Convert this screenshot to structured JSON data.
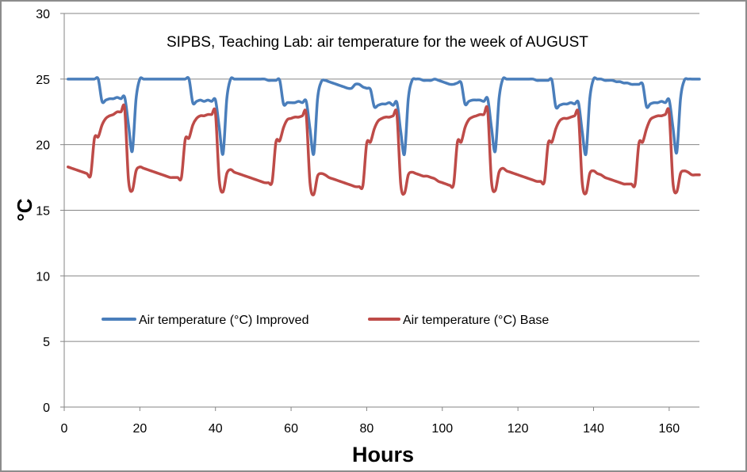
{
  "chart_data": {
    "type": "line",
    "title": "SIPBS, Teaching Lab: air temperature for the week of  AUGUST",
    "xlabel": "Hours",
    "ylabel": "°C",
    "xlim": [
      0,
      168
    ],
    "ylim": [
      0,
      30
    ],
    "xticks": [
      0,
      20,
      40,
      60,
      80,
      100,
      120,
      140,
      160
    ],
    "yticks": [
      0,
      5,
      10,
      15,
      20,
      25,
      30
    ],
    "grid": "horizontal",
    "legend_position": "center-left",
    "series": [
      {
        "name": "Air temperature (°C) Improved",
        "color": "#4a7ebb",
        "x_start": 1,
        "x_step": 1,
        "values": [
          25,
          25,
          25,
          25,
          25,
          25,
          25,
          25,
          25,
          23.3,
          23.4,
          23.5,
          23.5,
          23.6,
          23.5,
          23.6,
          21.5,
          19.5,
          23.5,
          25,
          25,
          25,
          25,
          25,
          25,
          25,
          25,
          25,
          25,
          25,
          25,
          25,
          25,
          23.2,
          23.3,
          23.4,
          23.3,
          23.4,
          23.3,
          23.4,
          21.3,
          19.3,
          23.5,
          25,
          25,
          25,
          25,
          25,
          25,
          25,
          25,
          25,
          25,
          24.9,
          24.9,
          24.9,
          24.9,
          23.1,
          23.2,
          23.2,
          23.2,
          23.3,
          23.2,
          23.3,
          21.2,
          19.3,
          23.5,
          24.8,
          24.9,
          24.8,
          24.7,
          24.6,
          24.5,
          24.4,
          24.3,
          24.3,
          24.6,
          24.6,
          24.4,
          24.3,
          24.2,
          22.9,
          23.0,
          23.1,
          23.1,
          23.2,
          23.0,
          23.2,
          21.0,
          19.3,
          23.5,
          24.9,
          25,
          25,
          24.9,
          24.9,
          24.9,
          25,
          24.9,
          24.8,
          24.7,
          24.6,
          24.6,
          24.7,
          24.7,
          23.1,
          23.3,
          23.4,
          23.4,
          23.4,
          23.3,
          23.5,
          21.3,
          19.5,
          23.5,
          25,
          25,
          25,
          25,
          25,
          25,
          25,
          25,
          25,
          24.9,
          24.9,
          24.9,
          24.9,
          24.9,
          22.9,
          23.0,
          23.1,
          23.1,
          23.2,
          23.1,
          23.2,
          21.0,
          19.3,
          23.5,
          25,
          25,
          25,
          24.9,
          24.9,
          24.9,
          24.8,
          24.8,
          24.7,
          24.7,
          24.6,
          24.6,
          24.6,
          24.6,
          22.9,
          23.1,
          23.2,
          23.2,
          23.3,
          23.2,
          23.4,
          21.3,
          19.4,
          23.5,
          24.9,
          25,
          25,
          25,
          25
        ]
      },
      {
        "name": "Air temperature (°C) Base",
        "color": "#be4b48",
        "x_start": 1,
        "x_step": 1,
        "values": [
          18.3,
          18.2,
          18.1,
          18.0,
          17.9,
          17.8,
          17.7,
          20.5,
          20.6,
          21.5,
          22.0,
          22.2,
          22.3,
          22.5,
          22.5,
          22.7,
          17.3,
          16.5,
          18.0,
          18.3,
          18.2,
          18.1,
          18.0,
          17.9,
          17.8,
          17.7,
          17.6,
          17.5,
          17.5,
          17.5,
          17.5,
          20.4,
          20.5,
          21.5,
          22.0,
          22.2,
          22.2,
          22.3,
          22.3,
          22.4,
          17.3,
          16.4,
          17.8,
          18.1,
          17.9,
          17.8,
          17.7,
          17.6,
          17.5,
          17.4,
          17.3,
          17.2,
          17.1,
          17.1,
          17.2,
          20.2,
          20.3,
          21.3,
          21.9,
          22.0,
          22.1,
          22.1,
          22.2,
          22.3,
          17.1,
          16.2,
          17.6,
          17.8,
          17.7,
          17.5,
          17.4,
          17.3,
          17.2,
          17.1,
          17.0,
          16.9,
          16.8,
          16.8,
          16.9,
          20.1,
          20.2,
          21.2,
          21.8,
          22.0,
          22.1,
          22.1,
          22.2,
          22.3,
          17.0,
          16.3,
          17.7,
          17.9,
          17.8,
          17.7,
          17.6,
          17.6,
          17.5,
          17.4,
          17.2,
          17.1,
          17.0,
          16.9,
          17.0,
          20.2,
          20.2,
          21.3,
          21.9,
          22.1,
          22.2,
          22.3,
          22.3,
          22.6,
          17.2,
          16.5,
          17.9,
          18.2,
          18.0,
          17.9,
          17.8,
          17.7,
          17.6,
          17.5,
          17.4,
          17.3,
          17.2,
          17.2,
          17.2,
          20.1,
          20.2,
          21.2,
          21.8,
          22.0,
          22.0,
          22.1,
          22.2,
          22.3,
          17.1,
          16.3,
          17.8,
          18.0,
          17.8,
          17.7,
          17.5,
          17.4,
          17.3,
          17.2,
          17.1,
          17.0,
          17.0,
          17.0,
          17.0,
          20.1,
          20.2,
          21.2,
          21.9,
          22.1,
          22.2,
          22.2,
          22.3,
          22.4,
          17.1,
          16.4,
          17.8,
          18.0,
          17.9,
          17.7,
          17.7,
          17.7
        ]
      }
    ]
  }
}
